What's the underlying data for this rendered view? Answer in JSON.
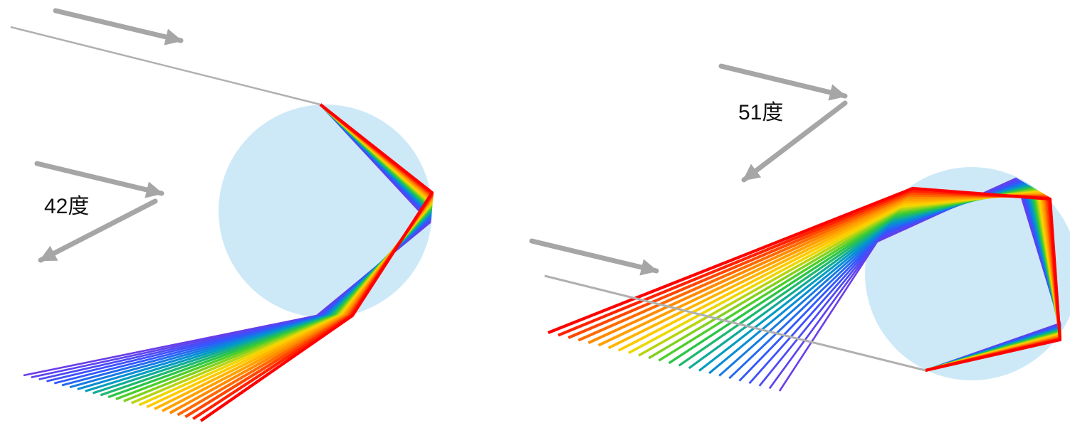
{
  "diagrams": [
    {
      "id": "primary-rainbow",
      "angle_label": "42度",
      "internal_reflections": 1,
      "incoming_arrow_icon": "arrow-right-icon",
      "outgoing_arrow_icon": "arrow-left-icon"
    },
    {
      "id": "secondary-rainbow",
      "angle_label": "51度",
      "internal_reflections": 2,
      "incoming_arrow_icon": "arrow-right-icon",
      "outgoing_arrow_icon": "arrow-left-icon"
    }
  ],
  "colors": {
    "droplet": "#cde9f7",
    "incident_ray": "#b0b0b0",
    "arrow": "#a6a6a6",
    "spectrum": [
      "#ff0000",
      "#ff8800",
      "#ffd800",
      "#33cc33",
      "#0099cc",
      "#3355ff",
      "#6a3de8"
    ]
  }
}
